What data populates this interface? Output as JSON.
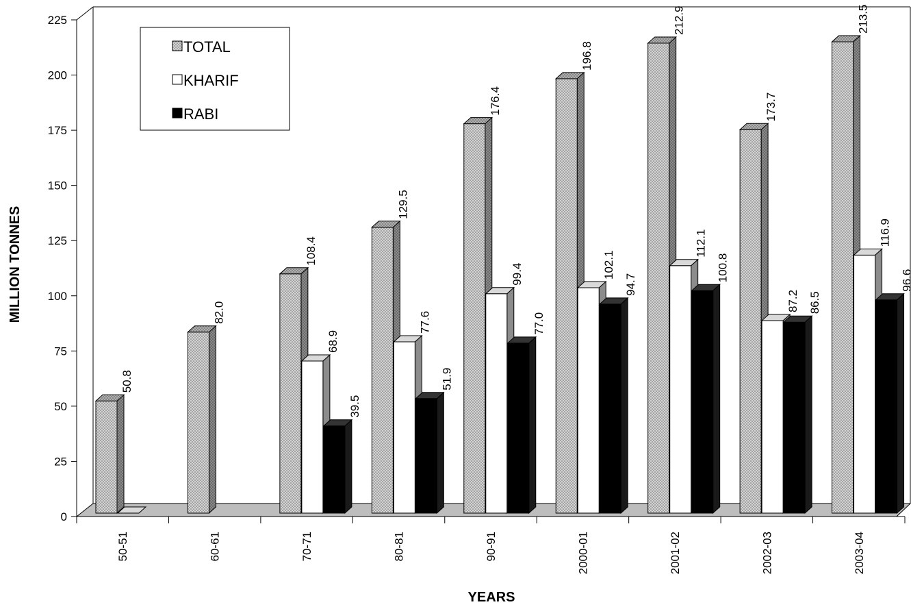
{
  "chart_data": {
    "type": "bar",
    "xlabel": "YEARS",
    "ylabel": "MILLION TONNES",
    "ylim": [
      0,
      225
    ],
    "yticks": [
      0,
      25,
      50,
      75,
      100,
      125,
      150,
      175,
      200,
      225
    ],
    "categories": [
      "50-51",
      "60-61",
      "70-71",
      "80-81",
      "90-91",
      "2000-01",
      "2001-02",
      "2002-03",
      "2003-04"
    ],
    "series": [
      {
        "name": "TOTAL",
        "values": [
          50.8,
          82.0,
          108.4,
          129.5,
          176.4,
          196.8,
          212.9,
          173.7,
          213.5
        ],
        "labels": [
          "50.8",
          "82.0",
          "108.4",
          "129.5",
          "176.4",
          "196.8",
          "212.9",
          "173.7",
          "213.5"
        ],
        "fill": "dotted"
      },
      {
        "name": "KHARIF",
        "values": [
          0,
          null,
          68.9,
          77.6,
          99.4,
          102.1,
          112.1,
          87.2,
          116.9
        ],
        "labels": [
          "",
          "",
          "68.9",
          "77.6",
          "99.4",
          "102.1",
          "112.1",
          "87.2",
          "116.9"
        ],
        "fill": "white"
      },
      {
        "name": "RABI",
        "values": [
          null,
          null,
          39.5,
          51.9,
          77.0,
          94.7,
          100.8,
          86.5,
          96.6
        ],
        "labels": [
          "",
          "",
          "39.5",
          "51.9",
          "77.0",
          "94.7",
          "100.8",
          "86.5",
          "96.6"
        ],
        "fill": "black"
      }
    ],
    "grid": false,
    "legend_position": "top-left",
    "style": "3d-clustered-columns"
  },
  "colors": {
    "total_front": "#d4d4d4",
    "total_dots": "#6a6a6a",
    "total_side": "#7f7f7f",
    "total_top": "#a6a6a6",
    "kharif_front": "#ffffff",
    "kharif_side": "#8c8c8c",
    "kharif_top": "#d9d9d9",
    "rabi_front": "#000000",
    "floor": "#bdbdbd",
    "axis": "#000000"
  }
}
